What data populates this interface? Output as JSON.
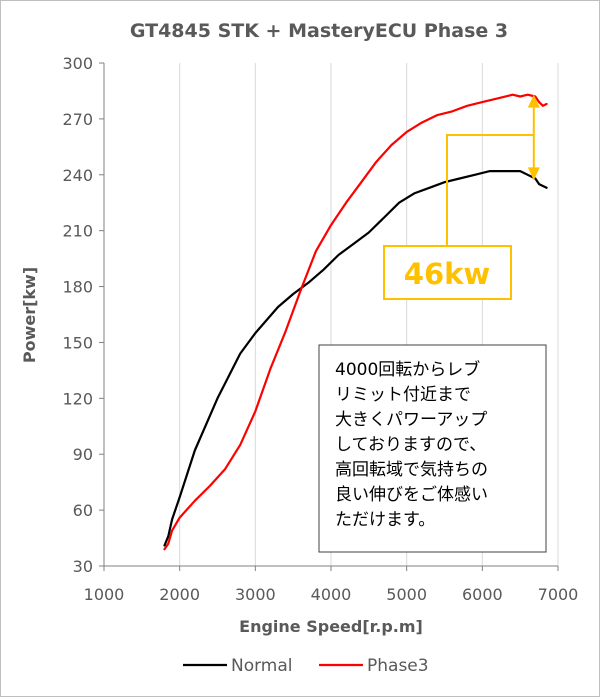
{
  "chart_data": {
    "type": "line",
    "title": "GT4845 STK + MasteryECU Phase 3",
    "xlabel": "Engine Speed[r.p.m]",
    "ylabel": "Power[kw]",
    "xlim": [
      1000,
      7000
    ],
    "ylim": [
      30,
      300
    ],
    "x_ticks": [
      1000,
      2000,
      3000,
      4000,
      5000,
      6000,
      7000
    ],
    "y_ticks": [
      30,
      60,
      90,
      120,
      150,
      180,
      210,
      240,
      270,
      300
    ],
    "grid": "vertical",
    "legend_position": "bottom",
    "series": [
      {
        "name": "Normal",
        "color": "#000000",
        "x": [
          1800,
          1850,
          1900,
          2000,
          2200,
          2500,
          2800,
          3000,
          3300,
          3500,
          3700,
          3900,
          4100,
          4300,
          4500,
          4700,
          4900,
          5100,
          5300,
          5500,
          5700,
          5900,
          6100,
          6300,
          6500,
          6600,
          6700,
          6750,
          6800,
          6850
        ],
        "y": [
          41,
          46,
          55,
          67,
          92,
          120,
          144,
          155,
          169,
          176,
          182,
          189,
          197,
          203,
          209,
          217,
          225,
          230,
          233,
          236,
          238,
          240,
          242,
          242,
          242,
          240,
          238,
          235,
          234,
          233
        ]
      },
      {
        "name": "Phase3",
        "color": "#ff0000",
        "x": [
          1800,
          1850,
          1900,
          2000,
          2200,
          2400,
          2600,
          2800,
          3000,
          3200,
          3400,
          3600,
          3800,
          4000,
          4200,
          4400,
          4600,
          4800,
          5000,
          5200,
          5400,
          5600,
          5800,
          6000,
          6200,
          6400,
          6500,
          6600,
          6700,
          6750,
          6800,
          6850
        ],
        "y": [
          39,
          42,
          49,
          56,
          65,
          73,
          82,
          95,
          113,
          136,
          156,
          178,
          199,
          213,
          225,
          236,
          247,
          256,
          263,
          268,
          272,
          274,
          277,
          279,
          281,
          283,
          282,
          283,
          282,
          279,
          277,
          278
        ]
      }
    ],
    "annotations": {
      "difference_label": "46kw",
      "arrow_x": 6680,
      "arrow_from": 237,
      "arrow_to": 283,
      "note_lines": [
        "4000回転からレブ",
        "リミット付近まで",
        "大きくパワーアップ",
        "しておりますので、",
        "高回転域で気持ちの",
        "良い伸びをご体感い",
        "ただけます。"
      ]
    },
    "colors": {
      "difference_accent": "#ffc000",
      "axis": "#808080",
      "tick_text": "#595959",
      "title_text": "#595959"
    }
  }
}
